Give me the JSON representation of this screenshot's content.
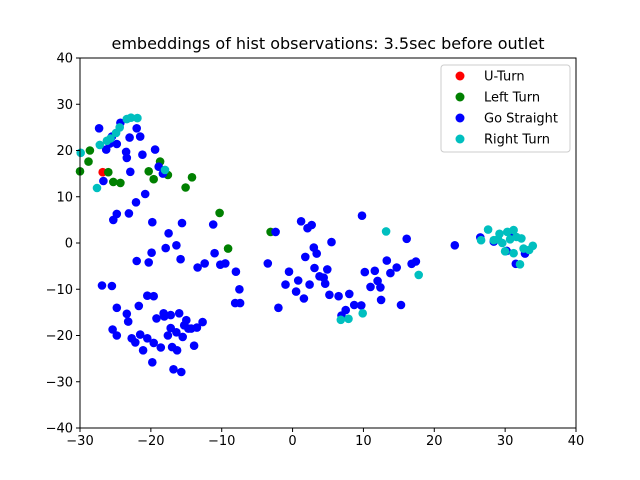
{
  "chart_data": {
    "type": "scatter",
    "title": "embeddings of hist observations: 3.5sec before outlet",
    "xlabel": "",
    "ylabel": "",
    "xlim": [
      -30,
      40
    ],
    "ylim": [
      -40,
      40
    ],
    "xticks": [
      "−30",
      "−20",
      "−10",
      "0",
      "10",
      "20",
      "30",
      "40"
    ],
    "yticks": [
      "−40",
      "−30",
      "−20",
      "−10",
      "0",
      "10",
      "20",
      "30",
      "40"
    ],
    "grid": false,
    "legend_position": "top-right",
    "series": [
      {
        "name": "U-Turn",
        "color": "#ff0000",
        "points": [
          [
            -26.8,
            15.3
          ]
        ]
      },
      {
        "name": "Left Turn",
        "color": "#008000",
        "points": [
          [
            -30.0,
            15.5
          ],
          [
            -28.8,
            17.6
          ],
          [
            -28.6,
            20.0
          ],
          [
            -26.0,
            15.3
          ],
          [
            -25.3,
            13.2
          ],
          [
            -24.3,
            13.0
          ],
          [
            -20.3,
            15.5
          ],
          [
            -19.6,
            13.8
          ],
          [
            -18.7,
            17.6
          ],
          [
            -17.6,
            14.7
          ],
          [
            -15.1,
            12.0
          ],
          [
            -14.2,
            14.2
          ],
          [
            -10.3,
            6.5
          ],
          [
            -9.1,
            -1.2
          ],
          [
            -3.1,
            2.4
          ]
        ]
      },
      {
        "name": "Go Straight",
        "color": "#0000ff",
        "points": [
          [
            -27.3,
            24.8
          ],
          [
            -26.7,
            13.4
          ],
          [
            -26.3,
            20.2
          ],
          [
            -25.8,
            21.5
          ],
          [
            -25.5,
            23.0
          ],
          [
            -24.8,
            21.4
          ],
          [
            -24.3,
            26.0
          ],
          [
            -23.5,
            19.7
          ],
          [
            -23.0,
            22.8
          ],
          [
            -23.4,
            18.4
          ],
          [
            -22.9,
            15.4
          ],
          [
            -22.0,
            24.8
          ],
          [
            -21.5,
            23.0
          ],
          [
            -21.2,
            19.1
          ],
          [
            -20.8,
            10.6
          ],
          [
            -19.4,
            20.2
          ],
          [
            -18.9,
            16.5
          ],
          [
            -18.3,
            15.0
          ],
          [
            -25.3,
            5.0
          ],
          [
            -24.8,
            6.3
          ],
          [
            -23.1,
            6.4
          ],
          [
            -22.1,
            8.8
          ],
          [
            -19.8,
            4.5
          ],
          [
            -17.5,
            2.1
          ],
          [
            -15.6,
            4.3
          ],
          [
            -11.2,
            4.0
          ],
          [
            -16.4,
            -0.5
          ],
          [
            -17.9,
            -1.1
          ],
          [
            -19.9,
            -2.1
          ],
          [
            -22.0,
            -3.9
          ],
          [
            -20.3,
            -4.2
          ],
          [
            -15.8,
            -3.5
          ],
          [
            -13.4,
            -5.3
          ],
          [
            -12.4,
            -4.4
          ],
          [
            -11.0,
            -2.2
          ],
          [
            -10.2,
            -4.7
          ],
          [
            -9.5,
            -4.4
          ],
          [
            -8.0,
            -6.2
          ],
          [
            -7.5,
            -10.0
          ],
          [
            -8.1,
            -13.0
          ],
          [
            -7.4,
            -13.0
          ],
          [
            -26.9,
            -9.2
          ],
          [
            -25.5,
            -9.3
          ],
          [
            -24.8,
            -14.0
          ],
          [
            -25.4,
            -18.7
          ],
          [
            -23.4,
            -15.3
          ],
          [
            -24.8,
            -20.0
          ],
          [
            -23.2,
            -17.0
          ],
          [
            -22.7,
            -20.6
          ],
          [
            -22.2,
            -21.5
          ],
          [
            -21.5,
            -19.8
          ],
          [
            -21.1,
            -23.2
          ],
          [
            -20.5,
            -20.6
          ],
          [
            -19.6,
            -21.6
          ],
          [
            -19.8,
            -25.8
          ],
          [
            -18.6,
            -22.6
          ],
          [
            -17.6,
            -20.0
          ],
          [
            -17.0,
            -22.5
          ],
          [
            -17.2,
            -18.4
          ],
          [
            -16.4,
            -19.3
          ],
          [
            -15.5,
            -20.3
          ],
          [
            -14.7,
            -18.5
          ],
          [
            -13.5,
            -18.3
          ],
          [
            -12.7,
            -17.1
          ],
          [
            -16.0,
            -15.2
          ],
          [
            -15.0,
            -16.7
          ],
          [
            -17.2,
            -15.6
          ],
          [
            -18.2,
            -15.2
          ],
          [
            -19.2,
            -16.3
          ],
          [
            -20.5,
            -11.4
          ],
          [
            -19.6,
            -11.5
          ],
          [
            -21.7,
            -13.6
          ],
          [
            -16.8,
            -27.3
          ],
          [
            -15.7,
            -27.9
          ],
          [
            -16.3,
            -23.2
          ],
          [
            -13.9,
            -22.2
          ],
          [
            -14.3,
            -18.5
          ],
          [
            -15.3,
            -17.8
          ],
          [
            -18.1,
            -15.9
          ],
          [
            -3.5,
            -4.4
          ],
          [
            -2.0,
            -14.0
          ],
          [
            -1.0,
            -9.0
          ],
          [
            -0.5,
            -6.2
          ],
          [
            0.8,
            -8.1
          ],
          [
            1.2,
            4.7
          ],
          [
            2.1,
            3.2
          ],
          [
            2.7,
            3.9
          ],
          [
            3.4,
            -2.3
          ],
          [
            3.1,
            -5.4
          ],
          [
            3.8,
            -7.2
          ],
          [
            2.4,
            -9.0
          ],
          [
            4.9,
            -5.7
          ],
          [
            4.4,
            -7.5
          ],
          [
            5.2,
            -11.2
          ],
          [
            6.5,
            -11.5
          ],
          [
            6.9,
            -15.7
          ],
          [
            7.5,
            -14.5
          ],
          [
            8.7,
            -13.4
          ],
          [
            9.7,
            -13.5
          ],
          [
            10.2,
            -6.3
          ],
          [
            9.8,
            5.9
          ],
          [
            11.6,
            -6.0
          ],
          [
            12.0,
            -8.2
          ],
          [
            12.4,
            -9.6
          ],
          [
            12.5,
            -12.3
          ],
          [
            13.3,
            -3.8
          ],
          [
            14.7,
            -5.3
          ],
          [
            15.3,
            -13.4
          ],
          [
            16.1,
            0.9
          ],
          [
            16.8,
            -4.5
          ],
          [
            17.4,
            -4.0
          ],
          [
            0.5,
            -10.5
          ],
          [
            1.8,
            -3.0
          ],
          [
            3.0,
            -1.0
          ],
          [
            5.5,
            0.2
          ],
          [
            11.0,
            -9.5
          ],
          [
            13.8,
            -6.5
          ],
          [
            8.0,
            -11.0
          ],
          [
            -2.4,
            2.4
          ],
          [
            1.6,
            -12.0
          ],
          [
            4.6,
            -8.8
          ],
          [
            22.9,
            -0.5
          ],
          [
            26.5,
            1.2
          ],
          [
            28.4,
            0.3
          ],
          [
            30.8,
            2.1
          ],
          [
            31.5,
            -4.5
          ],
          [
            32.8,
            -2.3
          ],
          [
            30.2,
            -1.7
          ]
        ]
      },
      {
        "name": "Right Turn",
        "color": "#00bfbf",
        "points": [
          [
            -29.9,
            19.5
          ],
          [
            -27.6,
            11.9
          ],
          [
            -27.2,
            21.2
          ],
          [
            -26.2,
            22.1
          ],
          [
            -25.7,
            22.6
          ],
          [
            -24.9,
            23.8
          ],
          [
            -24.4,
            25.0
          ],
          [
            -23.4,
            26.8
          ],
          [
            -22.8,
            27.1
          ],
          [
            -21.9,
            27.0
          ],
          [
            -18.0,
            15.8
          ],
          [
            13.2,
            2.5
          ],
          [
            17.8,
            -6.9
          ],
          [
            6.8,
            -16.6
          ],
          [
            7.9,
            -16.4
          ],
          [
            9.9,
            -15.2
          ],
          [
            26.6,
            0.6
          ],
          [
            27.6,
            2.9
          ],
          [
            28.4,
            0.6
          ],
          [
            29.2,
            2.0
          ],
          [
            29.6,
            0.0
          ],
          [
            30.3,
            2.4
          ],
          [
            30.7,
            0.8
          ],
          [
            31.2,
            2.8
          ],
          [
            31.6,
            1.3
          ],
          [
            32.3,
            1.0
          ],
          [
            32.6,
            -1.2
          ],
          [
            33.4,
            -1.5
          ],
          [
            33.9,
            -0.6
          ],
          [
            32.1,
            -4.6
          ],
          [
            30.0,
            -1.8
          ],
          [
            29.0,
            0.8
          ],
          [
            31.2,
            -2.2
          ]
        ]
      }
    ]
  }
}
